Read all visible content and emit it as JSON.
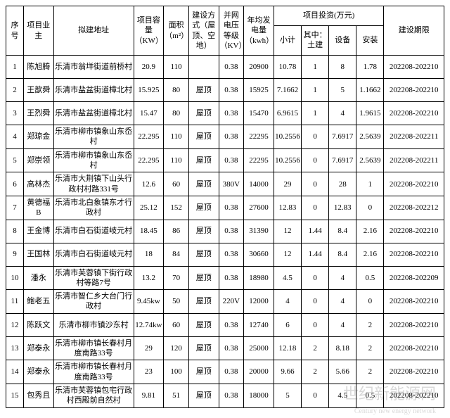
{
  "table": {
    "type": "table",
    "border_color": "#000000",
    "background_color": "#ffffff",
    "font_family": "SimSun",
    "font_size": 11,
    "columns": [
      {
        "key": "idx",
        "label": "序号",
        "width": "3.5%"
      },
      {
        "key": "owner",
        "label": "项目业主",
        "width": "6%"
      },
      {
        "key": "addr",
        "label": "拟建地址",
        "width": "16%"
      },
      {
        "key": "cap",
        "label": "项目容量（KW）",
        "width": "6%"
      },
      {
        "key": "area",
        "label": "面积（m²）",
        "width": "5%"
      },
      {
        "key": "mode",
        "label": "建设方式（屋顶、空地）",
        "width": "6%"
      },
      {
        "key": "volt",
        "label": "并网电压等级（KV）",
        "width": "5%"
      },
      {
        "key": "annual",
        "label": "年均发电量（kwh）",
        "width": "6%"
      },
      {
        "key": "inv_sub",
        "label": "小计",
        "width": "5.5%"
      },
      {
        "key": "inv_tj",
        "label": "其中：土建",
        "width": "5.5%"
      },
      {
        "key": "inv_sb",
        "label": "设备",
        "width": "5.5%"
      },
      {
        "key": "inv_az",
        "label": "安装",
        "width": "5.5%"
      },
      {
        "key": "period",
        "label": "建设期限",
        "width": "12%"
      }
    ],
    "group_header_investment": "项目投资(万元)",
    "rows": [
      {
        "idx": "1",
        "owner": "陈旭腾",
        "addr": "乐清市翁垟街道前桥村",
        "cap": "20.9",
        "area": "110",
        "mode": "",
        "volt": "0.38",
        "annual": "20900",
        "inv_sub": "10.78",
        "inv_tj": "1",
        "inv_sb": "8",
        "inv_az": "1.78",
        "period": "202208-202210"
      },
      {
        "idx": "2",
        "owner": "王歆舜",
        "addr": "乐清市盐盆街道樟北村",
        "cap": "15.925",
        "area": "80",
        "mode": "屋顶",
        "volt": "0.38",
        "annual": "15925",
        "inv_sub": "7.1662",
        "inv_tj": "1",
        "inv_sb": "5",
        "inv_az": "1.1662",
        "period": "202208-202210"
      },
      {
        "idx": "3",
        "owner": "王烈舜",
        "addr": "乐清市盐盆街道樟北村",
        "cap": "15.47",
        "area": "80",
        "mode": "屋顶",
        "volt": "0.38",
        "annual": "15470",
        "inv_sub": "6.9615",
        "inv_tj": "1",
        "inv_sb": "4",
        "inv_az": "1.9615",
        "period": "202208-202210"
      },
      {
        "idx": "4",
        "owner": "郑琼金",
        "addr": "乐清市柳市镇象山东岙村",
        "cap": "22.295",
        "area": "110",
        "mode": "屋顶",
        "volt": "0.38",
        "annual": "22295",
        "inv_sub": "10.2556",
        "inv_tj": "0",
        "inv_sb": "7.6917",
        "inv_az": "2.5639",
        "period": "202208-202211"
      },
      {
        "idx": "5",
        "owner": "郑崇领",
        "addr": "乐清市柳市镇象山东岙村",
        "cap": "22.295",
        "area": "110",
        "mode": "屋顶",
        "volt": "0.38",
        "annual": "22295",
        "inv_sub": "10.2556",
        "inv_tj": "0",
        "inv_sb": "7.6917",
        "inv_az": "2.5639",
        "period": "202208-202211"
      },
      {
        "idx": "6",
        "owner": "高林杰",
        "addr": "乐清市大荆镇下山头行政村村路331号",
        "cap": "12.6",
        "area": "60",
        "mode": "屋顶",
        "volt": "380V",
        "annual": "14000",
        "inv_sub": "29",
        "inv_tj": "0",
        "inv_sb": "28",
        "inv_az": "1",
        "period": "202208-202210"
      },
      {
        "idx": "7",
        "owner": "黄德福B",
        "addr": "乐清市北白象镇东才行政村",
        "cap": "25.12",
        "area": "152",
        "mode": "屋顶",
        "volt": "0.38",
        "annual": "27600",
        "inv_sub": "12.83",
        "inv_tj": "0",
        "inv_sb": "12.83",
        "inv_az": "0",
        "period": "202208-202212"
      },
      {
        "idx": "8",
        "owner": "王金博",
        "addr": "乐清市白石街道岐元村",
        "cap": "18.45",
        "area": "86",
        "mode": "屋顶",
        "volt": "0.38",
        "annual": "31390",
        "inv_sub": "12",
        "inv_tj": "1.44",
        "inv_sb": "8.4",
        "inv_az": "2.16",
        "period": "202208-202210"
      },
      {
        "idx": "9",
        "owner": "王国林",
        "addr": "乐清市白石街道岐元村",
        "cap": "18",
        "area": "84",
        "mode": "屋顶",
        "volt": "0.38",
        "annual": "30660",
        "inv_sub": "12",
        "inv_tj": "1.44",
        "inv_sb": "8.4",
        "inv_az": "2.16",
        "period": "202208-202210"
      },
      {
        "idx": "10",
        "owner": "潘永",
        "addr": "乐清市芙蓉镇下街行政村等路7号",
        "cap": "13.2",
        "area": "70",
        "mode": "屋顶",
        "volt": "0.38",
        "annual": "18980",
        "inv_sub": "4.5",
        "inv_tj": "0",
        "inv_sb": "4",
        "inv_az": "0.5",
        "period": "202208-202209"
      },
      {
        "idx": "11",
        "owner": "鲍老五",
        "addr": "乐清市智仁乡大台门行政村",
        "cap": "9.45kw",
        "area": "50",
        "mode": "屋顶",
        "volt": "220V",
        "annual": "12000",
        "inv_sub": "4",
        "inv_tj": "0",
        "inv_sb": "4",
        "inv_az": "0",
        "period": "202208-202210"
      },
      {
        "idx": "12",
        "owner": "陈跃文",
        "addr": "乐清市柳市镇沙东村",
        "cap": "12.74kw",
        "area": "60",
        "mode": "屋顶",
        "volt": "0.38",
        "annual": "12740",
        "inv_sub": "6",
        "inv_tj": "0",
        "inv_sb": "4",
        "inv_az": "2",
        "period": "202208-202210"
      },
      {
        "idx": "13",
        "owner": "郑泰永",
        "addr": "乐清市柳市镇长春村月度南路33号",
        "cap": "29",
        "area": "120",
        "mode": "屋顶",
        "volt": "0.38",
        "annual": "25000",
        "inv_sub": "12.18",
        "inv_tj": "2",
        "inv_sb": "8.18",
        "inv_az": "2",
        "period": "202208-202210"
      },
      {
        "idx": "14",
        "owner": "郑泰永",
        "addr": "乐清市柳市镇长春村月度南路33号",
        "cap": "23",
        "area": "100",
        "mode": "屋顶",
        "volt": "0.38",
        "annual": "20000",
        "inv_sub": "9.66",
        "inv_tj": "2",
        "inv_sb": "5.66",
        "inv_az": "2",
        "period": "202208-202210"
      },
      {
        "idx": "15",
        "owner": "包秀且",
        "addr": "乐清市芙蓉镇包宅行政村西殿前自然村",
        "cap": "9.81",
        "area": "51",
        "mode": "屋顶",
        "volt": "0.38",
        "annual": "18000",
        "inv_sub": "5",
        "inv_tj": "0",
        "inv_sb": "4.5",
        "inv_az": "0.5",
        "period": "202208-202210"
      }
    ]
  },
  "watermark": {
    "main": "世纪新能源网",
    "sub": "Century new energy network"
  }
}
